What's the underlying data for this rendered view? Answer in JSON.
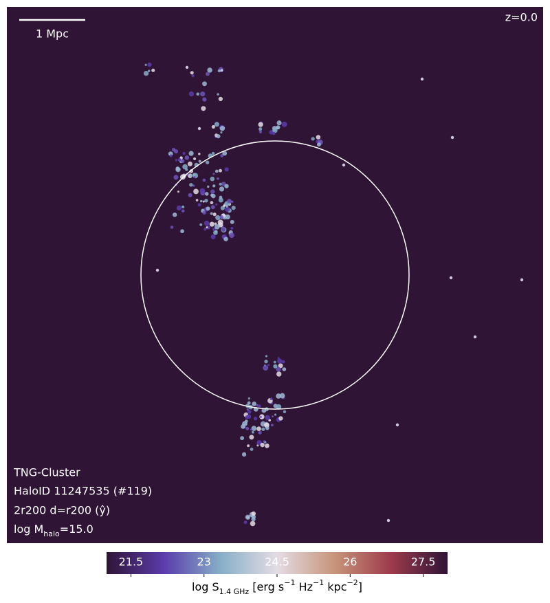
{
  "chart_data": {
    "type": "image",
    "scale_bar_label": "1 Mpc",
    "redshift_label": "z=0.0",
    "annotations": [
      "TNG-Cluster",
      "HaloID 11247535 (#119)",
      "2r200 d=r200 (ŷ)"
    ],
    "mass_label_parts": [
      [
        "log M",
        ""
      ],
      [
        "halo",
        "sub"
      ],
      [
        "=15.0",
        ""
      ]
    ],
    "colorbar": {
      "clim": [
        21.0,
        28.0
      ],
      "ticks": [
        21.5,
        23.0,
        24.5,
        26.0,
        27.5
      ],
      "colormap": [
        "#2f1436",
        "#5b3bab",
        "#86aec8",
        "#e4dce4",
        "#c8957b",
        "#9e3b4c",
        "#2f1436"
      ],
      "label_parts": [
        [
          "log S",
          ""
        ],
        [
          "1.4 GHz",
          "sub"
        ],
        [
          " [erg s",
          ""
        ],
        [
          "−1",
          "sup"
        ],
        [
          " Hz",
          ""
        ],
        [
          "−1",
          "sup"
        ],
        [
          " kpc",
          ""
        ],
        [
          "−2",
          "sup"
        ],
        [
          "]",
          ""
        ]
      ]
    }
  }
}
